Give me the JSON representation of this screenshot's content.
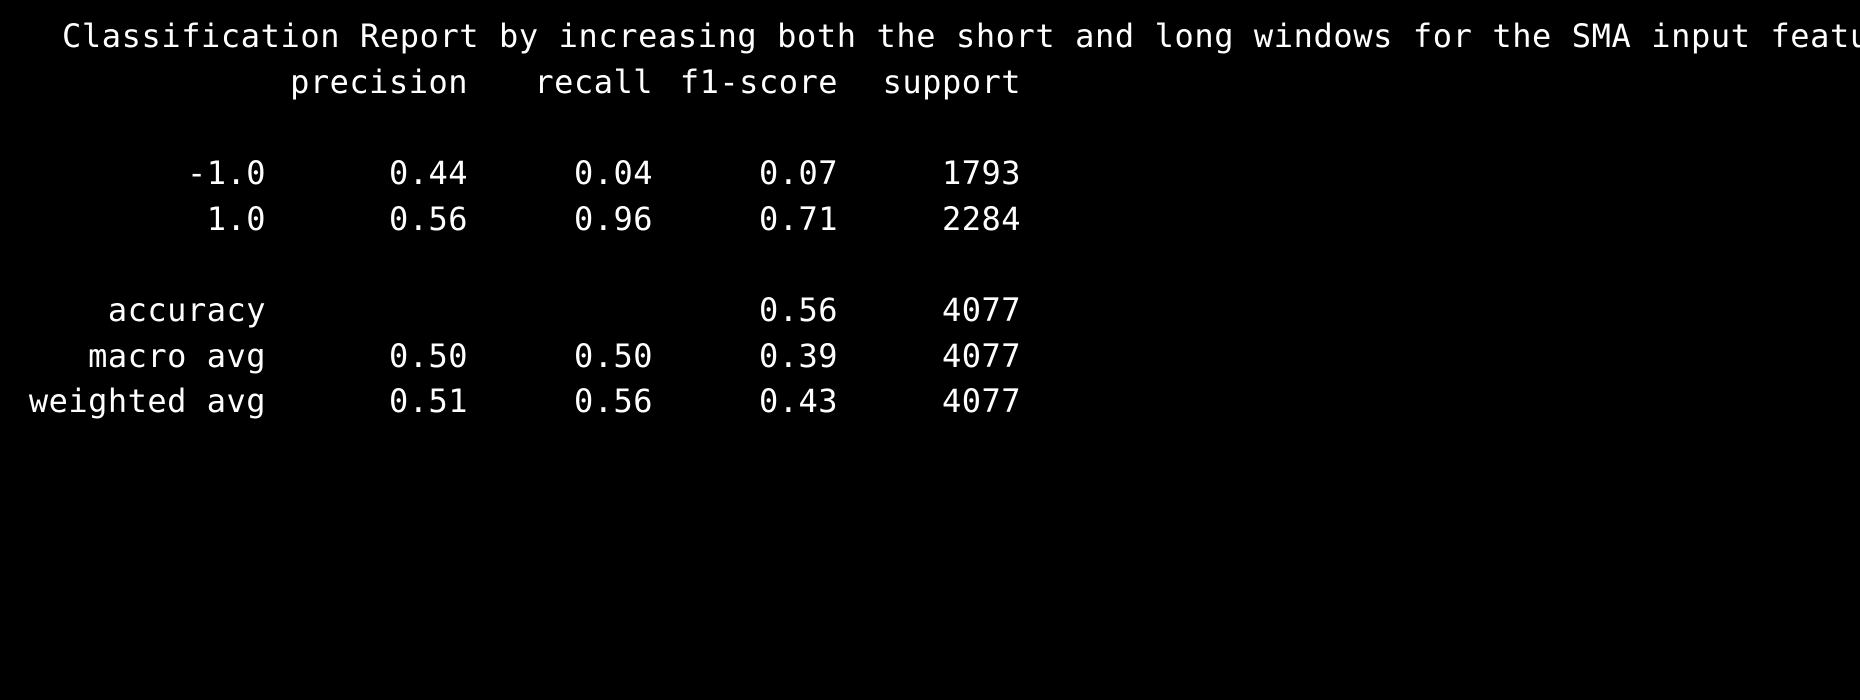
{
  "report": {
    "title": "Classification Report by increasing both the short and long windows for the SMA input features",
    "headers": {
      "precision": "precision",
      "recall": "recall",
      "f1": "f1-score",
      "support": "support"
    },
    "rows": [
      {
        "label": "-1.0",
        "precision": "0.44",
        "recall": "0.04",
        "f1": "0.07",
        "support": "1793"
      },
      {
        "label": "1.0",
        "precision": "0.56",
        "recall": "0.96",
        "f1": "0.71",
        "support": "2284"
      }
    ],
    "accuracy": {
      "label": "accuracy",
      "f1": "0.56",
      "support": "4077"
    },
    "macro_avg": {
      "label": "macro avg",
      "precision": "0.50",
      "recall": "0.50",
      "f1": "0.39",
      "support": "4077"
    },
    "weighted_avg": {
      "label": "weighted avg",
      "precision": "0.51",
      "recall": "0.56",
      "f1": "0.43",
      "support": "4077"
    }
  }
}
